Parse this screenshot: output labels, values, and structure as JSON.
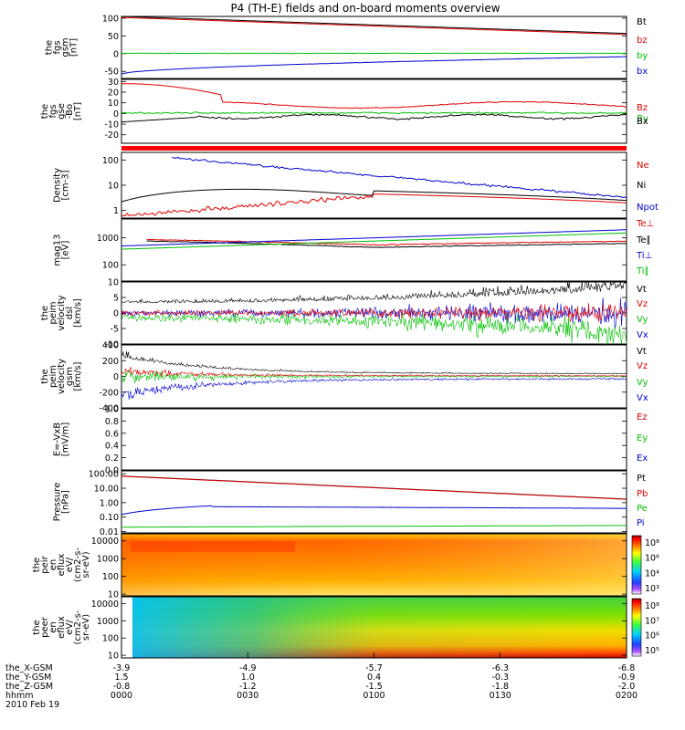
{
  "title": "P4 (TH-E) fields and on-board moments overview",
  "date": "2010 Feb 19",
  "colors": {
    "black": "#000000",
    "red": "#e00000",
    "green": "#00c000",
    "blue": "#0000d0"
  },
  "chart_data": [
    {
      "type": "line",
      "id": "fgs_gsm",
      "ylabel": [
        "the",
        "fgs",
        "gsm",
        "[nT]"
      ],
      "yticks": [
        "100",
        "50",
        "0",
        "-50"
      ],
      "ylim": [
        -70,
        105
      ],
      "series": [
        {
          "name": "Bt",
          "color": "black"
        },
        {
          "name": "bz",
          "color": "red"
        },
        {
          "name": "by",
          "color": "green"
        },
        {
          "name": "bx",
          "color": "blue"
        }
      ]
    },
    {
      "type": "line",
      "id": "fgs_gse",
      "ylabel": [
        "the",
        "fgs",
        "gse",
        "-Bo",
        "[nT]"
      ],
      "yticks": [
        "30",
        "20",
        "10",
        "0",
        "-10",
        "-20"
      ],
      "ylim": [
        -28,
        32
      ],
      "series": [
        {
          "name": "Bz",
          "color": "red"
        },
        {
          "name": "By",
          "color": "green"
        },
        {
          "name": "Bx",
          "color": "black"
        }
      ]
    },
    {
      "type": "line",
      "id": "density",
      "ylabel": [
        "Density",
        "[cm-3]"
      ],
      "log": true,
      "yticks": [
        "100",
        "10",
        "1"
      ],
      "ylim": [
        0.5,
        200
      ],
      "series": [
        {
          "name": "Ne",
          "color": "red"
        },
        {
          "name": "Ni",
          "color": "black"
        },
        {
          "name": "Npot",
          "color": "blue"
        }
      ]
    },
    {
      "type": "line",
      "id": "temperature",
      "ylabel": [
        "mag13",
        "[eV]"
      ],
      "log": true,
      "yticks": [
        "1000",
        "100"
      ],
      "ylim": [
        25,
        5000
      ],
      "series": [
        {
          "name": "Te⊥",
          "color": "red"
        },
        {
          "name": "Te∥",
          "color": "black"
        },
        {
          "name": "Ti⊥",
          "color": "blue"
        },
        {
          "name": "Ti∥",
          "color": "green"
        }
      ]
    },
    {
      "type": "line",
      "id": "velocity_dsl",
      "ylabel": [
        "the",
        "peim",
        "velocity",
        "dsl",
        "[km/s]"
      ],
      "yticks": [
        "10",
        "5",
        "0",
        "-5",
        "-10"
      ],
      "ylim": [
        -10,
        10
      ],
      "series": [
        {
          "name": "Vt",
          "color": "black"
        },
        {
          "name": "Vz",
          "color": "red"
        },
        {
          "name": "Vy",
          "color": "green"
        },
        {
          "name": "Vx",
          "color": "blue"
        }
      ]
    },
    {
      "type": "line",
      "id": "velocity_gsm",
      "ylabel": [
        "the",
        "peim",
        "velocity",
        "gsm",
        "[km/s]"
      ],
      "yticks": [
        "400",
        "200",
        "0",
        "-200",
        "-400"
      ],
      "ylim": [
        -400,
        400
      ],
      "series": [
        {
          "name": "Vt",
          "color": "black"
        },
        {
          "name": "Vz",
          "color": "red"
        },
        {
          "name": "Vy",
          "color": "green"
        },
        {
          "name": "Vx",
          "color": "blue"
        }
      ]
    },
    {
      "type": "line",
      "id": "efield",
      "ylabel": [
        "E=-VxB",
        "[mV/m]"
      ],
      "yticks": [
        "1.0",
        "0.8",
        "0.6",
        "0.4",
        "0.2",
        "0.0"
      ],
      "ylim": [
        0,
        1
      ],
      "series": [
        {
          "name": "Ez",
          "color": "red"
        },
        {
          "name": "Ey",
          "color": "green"
        },
        {
          "name": "Ex",
          "color": "blue"
        }
      ]
    },
    {
      "type": "line",
      "id": "pressure",
      "ylabel": [
        "Pressure",
        "[nPa]"
      ],
      "log": true,
      "yticks": [
        "100.00",
        "10.00",
        "1.00",
        "0.10",
        "0.01"
      ],
      "ylim": [
        0.008,
        160
      ],
      "series": [
        {
          "name": "Pt",
          "color": "black"
        },
        {
          "name": "Pb",
          "color": "red"
        },
        {
          "name": "Pe",
          "color": "green"
        },
        {
          "name": "Pi",
          "color": "blue"
        }
      ]
    },
    {
      "type": "heatmap",
      "id": "peir",
      "ylabel": [
        "the",
        "peir",
        "en",
        "eflux",
        "eV/",
        "(cm2-s-",
        "sr-eV)"
      ],
      "log": true,
      "yticks": [
        "10000",
        "1000",
        "100",
        "10"
      ],
      "ylim": [
        8,
        25000
      ],
      "colorbar": [
        "10⁸",
        "10⁶",
        "10⁴",
        "10³"
      ]
    },
    {
      "type": "heatmap",
      "id": "peer",
      "ylabel": [
        "the",
        "peer",
        "en",
        "eflux",
        "eV/",
        "(cm2-s-",
        "sr-eV)"
      ],
      "log": true,
      "yticks": [
        "10000",
        "1000",
        "100",
        "10"
      ],
      "ylim": [
        7,
        25000
      ],
      "colorbar": [
        "10⁸",
        "10⁷",
        "10⁶",
        "10⁵"
      ]
    }
  ],
  "xaxis": {
    "rows": [
      {
        "label": "the_X-GSM",
        "values": [
          "-3.9",
          "-4.9",
          "-5.7",
          "-6.3",
          "-6.8"
        ]
      },
      {
        "label": "the_Y-GSM",
        "values": [
          "1.5",
          "1.0",
          "0.4",
          "-0.3",
          "-0.9"
        ]
      },
      {
        "label": "the_Z-GSM",
        "values": [
          "-0.8",
          "-1.2",
          "-1.5",
          "-1.8",
          "-2.0"
        ]
      },
      {
        "label": "hhmm",
        "values": [
          "0000",
          "0030",
          "0100",
          "0130",
          "0200"
        ]
      }
    ]
  }
}
